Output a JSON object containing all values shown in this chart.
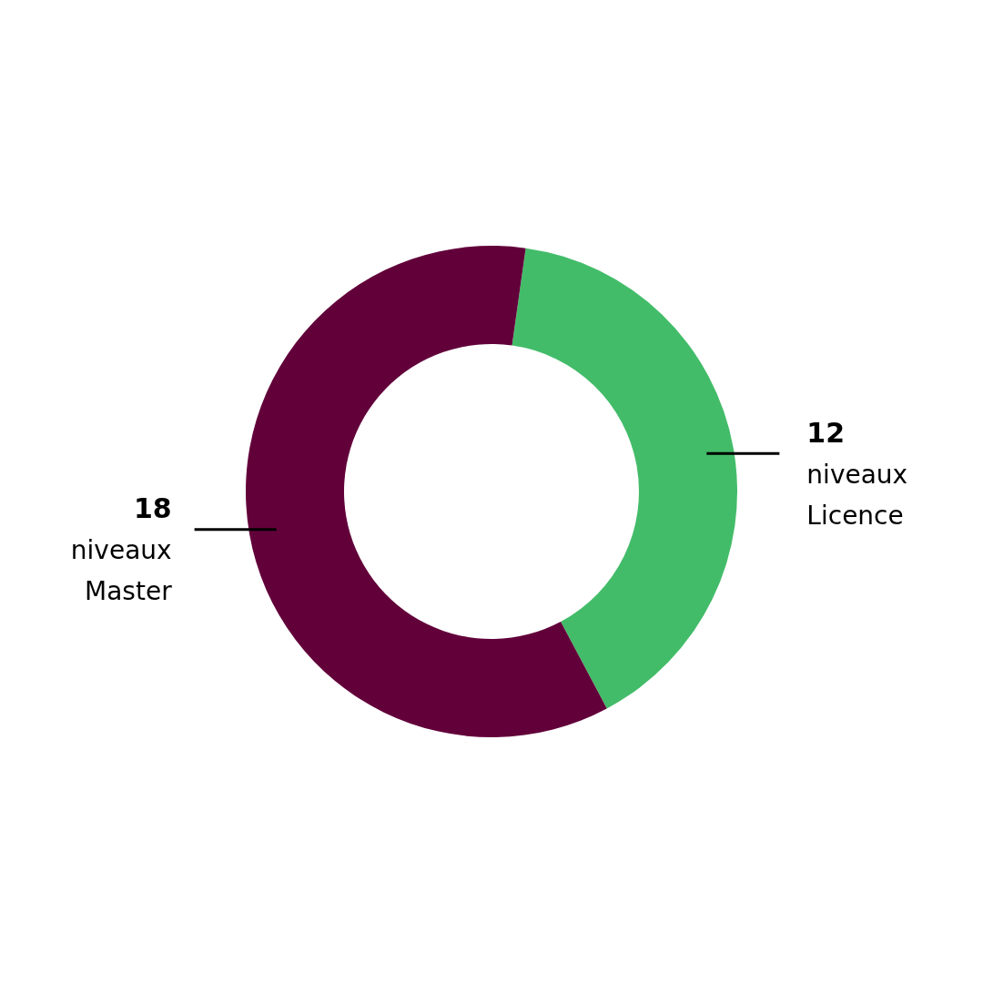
{
  "chart_data": {
    "type": "donut",
    "categories": [
      "niveaux Licence",
      "niveaux Master"
    ],
    "values": [
      12,
      18
    ],
    "colors": [
      "#43bc69",
      "#62003a"
    ],
    "data_labels": true,
    "legend": false
  }
}
